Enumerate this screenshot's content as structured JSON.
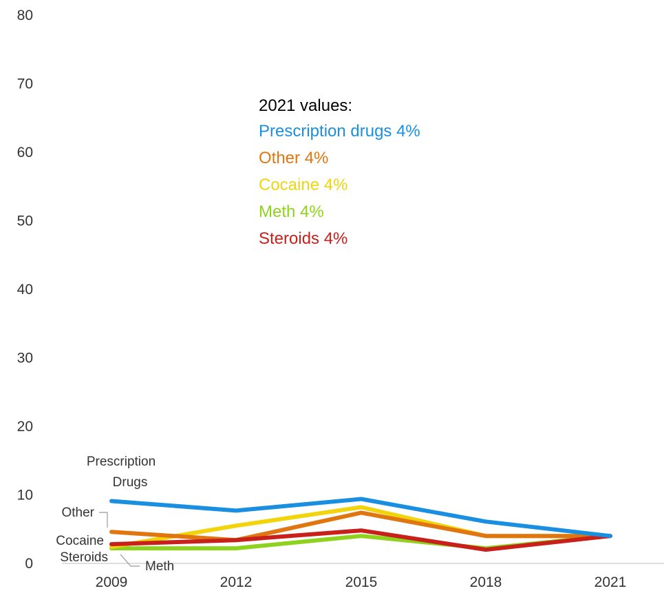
{
  "chart_data": {
    "type": "line",
    "x": [
      2009,
      2012,
      2015,
      2018,
      2021
    ],
    "yticks": [
      0,
      10,
      20,
      30,
      40,
      50,
      60,
      70,
      80
    ],
    "ylim": [
      0,
      80
    ],
    "grid": false,
    "title": "",
    "xlabel": "",
    "ylabel": "",
    "series": [
      {
        "key": "prescription",
        "name": "Prescription Drugs",
        "color": "#1a8fe0",
        "values": [
          9.1,
          7.7,
          9.4,
          6.1,
          4.0
        ]
      },
      {
        "key": "other",
        "name": "Other",
        "color": "#e0760f",
        "values": [
          4.6,
          3.4,
          7.4,
          4.0,
          4.0
        ]
      },
      {
        "key": "cocaine",
        "name": "Cocaine",
        "color": "#f2d40c",
        "values": [
          2.4,
          5.5,
          8.2,
          4.0,
          4.0
        ]
      },
      {
        "key": "meth",
        "name": "Meth",
        "color": "#8fd21e",
        "values": [
          2.2,
          2.2,
          4.0,
          2.2,
          4.0
        ]
      },
      {
        "key": "steroids",
        "name": "Steroids",
        "color": "#c8201a",
        "values": [
          2.8,
          3.4,
          4.8,
          2.0,
          4.0
        ]
      }
    ],
    "line_labels": {
      "prescription": [
        "Prescription",
        "Drugs"
      ],
      "other": "Other",
      "cocaine": "Cocaine",
      "steroids": "Steroids",
      "meth": "Meth"
    },
    "annotation": {
      "title": "2021 values:",
      "items": [
        {
          "text": "Prescription drugs  4%",
          "color": "#1a8fe0"
        },
        {
          "text": "Other  4%",
          "color": "#e0760f"
        },
        {
          "text": "Cocaine  4%",
          "color": "#f2d40c"
        },
        {
          "text": "Meth  4%",
          "color": "#8fd21e"
        },
        {
          "text": "Steroids  4%",
          "color": "#c8201a"
        }
      ]
    }
  }
}
